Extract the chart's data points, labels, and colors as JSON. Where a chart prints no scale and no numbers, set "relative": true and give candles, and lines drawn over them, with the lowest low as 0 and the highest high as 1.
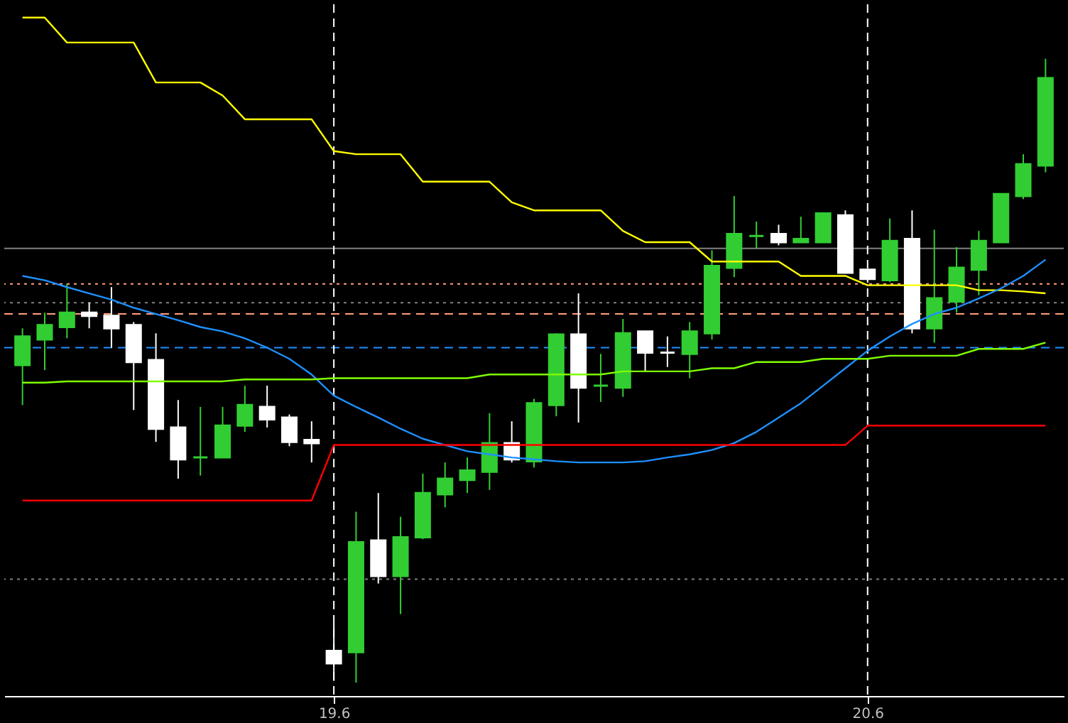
{
  "chart_data": {
    "type": "candlestick",
    "relative": true,
    "categories": [
      null,
      null,
      null,
      null,
      null,
      null,
      null,
      null,
      null,
      null,
      null,
      null,
      null,
      null,
      "19.6",
      null,
      null,
      null,
      null,
      null,
      null,
      null,
      null,
      null,
      null,
      null,
      null,
      null,
      null,
      null,
      null,
      null,
      null,
      null,
      null,
      null,
      null,
      null,
      "20.6",
      null,
      null,
      null,
      null,
      null,
      null,
      null,
      null
    ],
    "ohlc": [
      [
        0.509,
        0.568,
        0.445,
        0.555
      ],
      [
        0.55,
        0.593,
        0.501,
        0.573
      ],
      [
        0.57,
        0.639,
        0.552,
        0.593
      ],
      [
        0.593,
        0.609,
        0.568,
        0.588
      ],
      [
        0.588,
        0.634,
        0.537,
        0.568
      ],
      [
        0.573,
        0.578,
        0.437,
        0.514
      ],
      [
        0.517,
        0.56,
        0.386,
        0.407
      ],
      [
        0.409,
        0.453,
        0.327,
        0.358
      ],
      [
        0.361,
        0.442,
        0.332,
        0.361
      ],
      [
        0.361,
        0.442,
        0.361,
        0.412
      ],
      [
        0.412,
        0.476,
        0.402,
        0.445
      ],
      [
        0.442,
        0.476,
        0.409,
        0.422
      ],
      [
        0.425,
        0.43,
        0.379,
        0.386
      ],
      [
        0.389,
        0.419,
        0.353,
        0.384
      ],
      [
        0.051,
        0.095,
        0.003,
        0.031
      ],
      [
        0.049,
        0.274,
        0,
        0.225
      ],
      [
        0.228,
        0.304,
        0.159,
        0.171
      ],
      [
        0.171,
        0.266,
        0.11,
        0.233
      ],
      [
        0.233,
        0.335,
        0.23,
        0.304
      ],
      [
        0.302,
        0.353,
        0.281,
        0.327
      ],
      [
        0.325,
        0.361,
        0.304,
        0.34
      ],
      [
        0.338,
        0.432,
        0.309,
        0.384
      ],
      [
        0.384,
        0.419,
        0.353,
        0.358
      ],
      [
        0.355,
        0.455,
        0.345,
        0.448
      ],
      [
        0.445,
        0.56,
        0.427,
        0.558
      ],
      [
        0.558,
        0.624,
        0.417,
        0.473
      ],
      [
        0.476,
        0.527,
        0.45,
        0.476
      ],
      [
        0.473,
        0.583,
        0.458,
        0.56
      ],
      [
        0.563,
        0.563,
        0.499,
        0.529
      ],
      [
        0.529,
        0.555,
        0.506,
        0.529
      ],
      [
        0.527,
        0.578,
        0.488,
        0.563
      ],
      [
        0.56,
        0.693,
        0.55,
        0.668
      ],
      [
        0.665,
        0.78,
        0.65,
        0.719
      ],
      [
        0.716,
        0.739,
        0.696,
        0.716
      ],
      [
        0.719,
        0.734,
        0.701,
        0.706
      ],
      [
        0.706,
        0.747,
        0.706,
        0.711
      ],
      [
        0.706,
        0.754,
        0.706,
        0.752
      ],
      [
        0.749,
        0.757,
        0.657,
        0.657
      ],
      [
        0.662,
        0.662,
        0.645,
        0.647
      ],
      [
        0.645,
        0.744,
        0.642,
        0.708
      ],
      [
        0.711,
        0.757,
        0.56,
        0.568
      ],
      [
        0.568,
        0.726,
        0.545,
        0.616
      ],
      [
        0.611,
        0.698,
        0.593,
        0.665
      ],
      [
        0.662,
        0.724,
        0.621,
        0.708
      ],
      [
        0.706,
        0.783,
        0.706,
        0.783
      ],
      [
        0.78,
        0.847,
        0.775,
        0.831
      ],
      [
        0.829,
        1,
        0.818,
        0.969
      ]
    ],
    "colors": [
      "#32cd32",
      "#32cd32",
      "#32cd32",
      "#ffffff",
      "#ffffff",
      "#ffffff",
      "#ffffff",
      "#ffffff",
      "#32cd32",
      "#32cd32",
      "#32cd32",
      "#ffffff",
      "#ffffff",
      "#ffffff",
      "#ffffff",
      "#32cd32",
      "#ffffff",
      "#32cd32",
      "#32cd32",
      "#32cd32",
      "#32cd32",
      "#32cd32",
      "#ffffff",
      "#32cd32",
      "#32cd32",
      "#ffffff",
      "#32cd32",
      "#32cd32",
      "#ffffff",
      "#ffffff",
      "#32cd32",
      "#32cd32",
      "#32cd32",
      "#32cd32",
      "#ffffff",
      "#32cd32",
      "#32cd32",
      "#ffffff",
      "#ffffff",
      "#32cd32",
      "#ffffff",
      "#32cd32",
      "#32cd32",
      "#32cd32",
      "#32cd32",
      "#32cd32",
      "#32cd32"
    ],
    "series": [
      {
        "type": "line",
        "color": "#ffff00",
        "values": [
          1.066,
          1.066,
          1.026,
          1.026,
          1.026,
          1.026,
          0.962,
          0.962,
          0.962,
          0.941,
          0.903,
          0.903,
          0.903,
          0.903,
          0.852,
          0.847,
          0.847,
          0.847,
          0.803,
          0.803,
          0.803,
          0.803,
          0.77,
          0.757,
          0.757,
          0.757,
          0.757,
          0.724,
          0.706,
          0.706,
          0.706,
          0.675,
          0.675,
          0.675,
          0.675,
          0.652,
          0.652,
          0.652,
          0.637,
          0.637,
          0.637,
          0.637,
          0.637,
          0.629,
          0.629,
          0.627,
          0.624
        ]
      },
      {
        "type": "line",
        "color": "#1e90ff",
        "values": [
          0.652,
          0.645,
          0.634,
          0.624,
          0.614,
          0.601,
          0.591,
          0.581,
          0.57,
          0.563,
          0.552,
          0.537,
          0.519,
          0.494,
          0.46,
          0.442,
          0.425,
          0.407,
          0.391,
          0.381,
          0.371,
          0.366,
          0.361,
          0.358,
          0.355,
          0.353,
          0.353,
          0.353,
          0.355,
          0.361,
          0.366,
          0.373,
          0.384,
          0.402,
          0.425,
          0.448,
          0.476,
          0.504,
          0.532,
          0.555,
          0.575,
          0.591,
          0.601,
          0.616,
          0.632,
          0.652,
          0.678
        ]
      },
      {
        "type": "line",
        "color": "#7fff00",
        "values": [
          0.481,
          0.481,
          0.483,
          0.483,
          0.483,
          0.483,
          0.483,
          0.483,
          0.483,
          0.483,
          0.486,
          0.486,
          0.486,
          0.486,
          0.488,
          0.488,
          0.488,
          0.488,
          0.488,
          0.488,
          0.488,
          0.494,
          0.494,
          0.494,
          0.494,
          0.494,
          0.494,
          0.499,
          0.499,
          0.499,
          0.499,
          0.504,
          0.504,
          0.514,
          0.514,
          0.514,
          0.519,
          0.519,
          0.519,
          0.524,
          0.524,
          0.524,
          0.524,
          0.535,
          0.535,
          0.535,
          0.545
        ]
      },
      {
        "type": "line",
        "color": "#ff0000",
        "values": [
          0.292,
          0.292,
          0.292,
          0.292,
          0.292,
          0.292,
          0.292,
          0.292,
          0.292,
          0.292,
          0.292,
          0.292,
          0.292,
          0.292,
          0.381,
          0.381,
          0.381,
          0.381,
          0.381,
          0.381,
          0.381,
          0.381,
          0.381,
          0.381,
          0.381,
          0.381,
          0.381,
          0.381,
          0.381,
          0.381,
          0.381,
          0.381,
          0.381,
          0.381,
          0.381,
          0.381,
          0.381,
          0.381,
          0.412,
          0.412,
          0.412,
          0.412,
          0.412,
          0.412,
          0.412,
          0.412,
          0.412
        ]
      }
    ],
    "ref_lines": [
      {
        "axis": "y",
        "value": 0.696,
        "color": "#808080",
        "line_style": "solid"
      },
      {
        "axis": "y",
        "value": 0.639,
        "color": "#ffa07a",
        "line_style": "dotted"
      },
      {
        "axis": "y",
        "value": 0.609,
        "color": "#808080",
        "line_style": "dotted"
      },
      {
        "axis": "y",
        "value": 0.591,
        "color": "#ffa07a",
        "line_style": "dashed"
      },
      {
        "axis": "y",
        "value": 0.537,
        "color": "#1e90ff",
        "line_style": "dashed"
      },
      {
        "axis": "y",
        "value": 0.166,
        "color": "#808080",
        "line_style": "dotted"
      },
      {
        "axis": "x",
        "value": "19.6",
        "color": "#ffffff",
        "line_style": "dashed"
      },
      {
        "axis": "x",
        "value": "20.6",
        "color": "#ffffff",
        "line_style": "dashed"
      }
    ]
  }
}
